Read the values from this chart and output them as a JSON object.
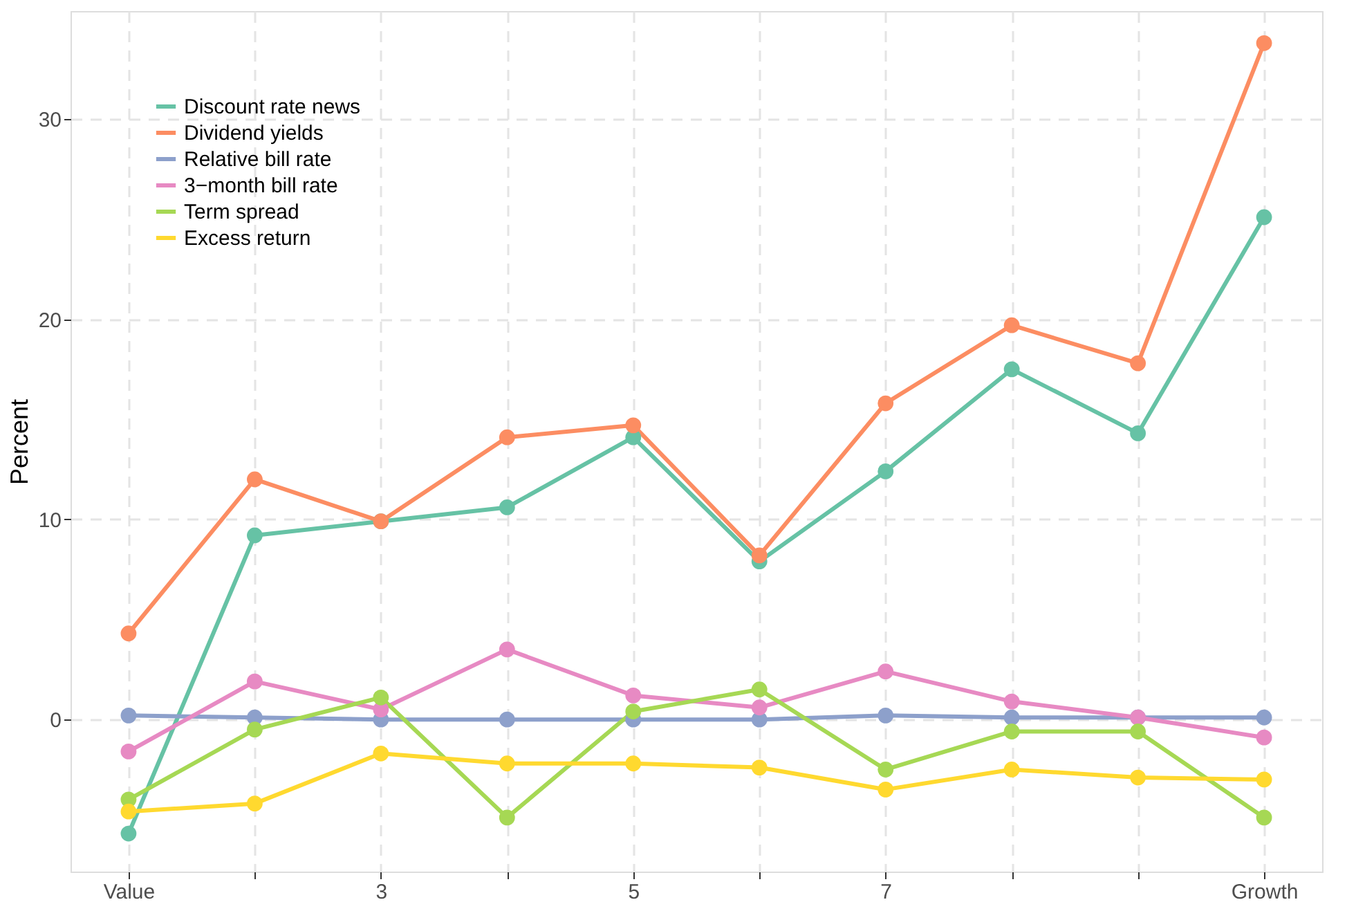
{
  "chart_data": {
    "type": "line",
    "ylabel": "Percent",
    "categories": [
      "Value",
      null,
      "3",
      null,
      "5",
      null,
      "7",
      null,
      null,
      "Growth"
    ],
    "ylim": [
      -7.6,
      35.4
    ],
    "yticks": [
      0,
      10,
      20,
      30
    ],
    "grid": true,
    "legend": "top left",
    "marker": "circle",
    "line_style": "solid",
    "series": [
      {
        "name": "Discount rate news",
        "color": "#66c2a5",
        "values": [
          -5.7,
          9.2,
          9.9,
          10.6,
          14.1,
          7.9,
          12.4,
          17.5,
          14.3,
          25.1
        ]
      },
      {
        "name": "Dividend yields",
        "color": "#fc8d62",
        "values": [
          4.3,
          12.0,
          9.9,
          14.1,
          14.7,
          8.2,
          15.8,
          19.7,
          17.8,
          33.8
        ]
      },
      {
        "name": "Relative bill rate",
        "color": "#8da0cb",
        "values": [
          0.2,
          0.1,
          0.0,
          0.0,
          0.0,
          0.0,
          0.2,
          0.1,
          0.1,
          0.1
        ]
      },
      {
        "name": "3−month bill rate",
        "color": "#e78ac3",
        "values": [
          -1.6,
          1.9,
          0.5,
          3.5,
          1.2,
          0.6,
          2.4,
          0.9,
          0.1,
          -0.9
        ]
      },
      {
        "name": "Term spread",
        "color": "#a6d854",
        "values": [
          -4.0,
          -0.5,
          1.1,
          -4.9,
          0.4,
          1.5,
          -2.5,
          -0.6,
          -0.6,
          -4.9
        ]
      },
      {
        "name": "Excess return",
        "color": "#ffd92f",
        "values": [
          -4.6,
          -4.2,
          -1.7,
          -2.2,
          -2.2,
          -2.4,
          -3.5,
          -2.5,
          -2.9,
          -3.0
        ]
      }
    ]
  }
}
